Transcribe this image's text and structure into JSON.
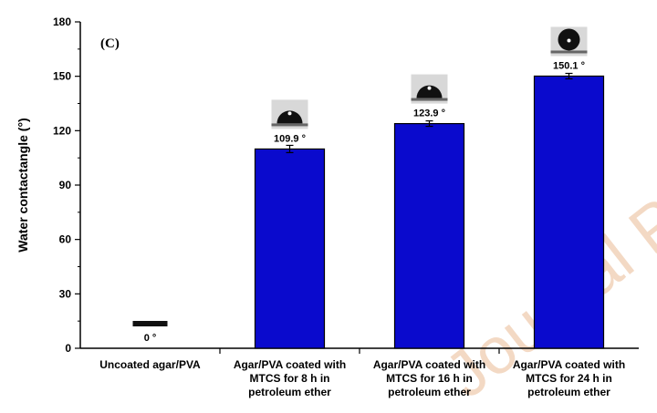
{
  "chart_data": {
    "type": "bar",
    "panel_label": "(C)",
    "ylabel": "Water contactangle (°)",
    "ylim": [
      0,
      180
    ],
    "yticks": [
      0,
      30,
      60,
      90,
      120,
      150,
      180
    ],
    "categories": [
      [
        "Uncoated agar/PVA"
      ],
      [
        "Agar/PVA coated with",
        "MTCS for 8 h in",
        "petroleum ether"
      ],
      [
        "Agar/PVA coated with",
        "MTCS for 16 h in",
        "petroleum ether"
      ],
      [
        "Agar/PVA coated with",
        "MTCS for 24 h in",
        "petroleum ether"
      ]
    ],
    "values": [
      0,
      109.9,
      123.9,
      150.1
    ],
    "errors": [
      0,
      2,
      1.5,
      1.5
    ],
    "value_labels": [
      "0 °",
      "109.9 °",
      "123.9 °",
      "150.1 °"
    ],
    "bar_color": "#0a0acd",
    "has_droplet_images": true
  },
  "watermark": "Journal Pre-proof"
}
